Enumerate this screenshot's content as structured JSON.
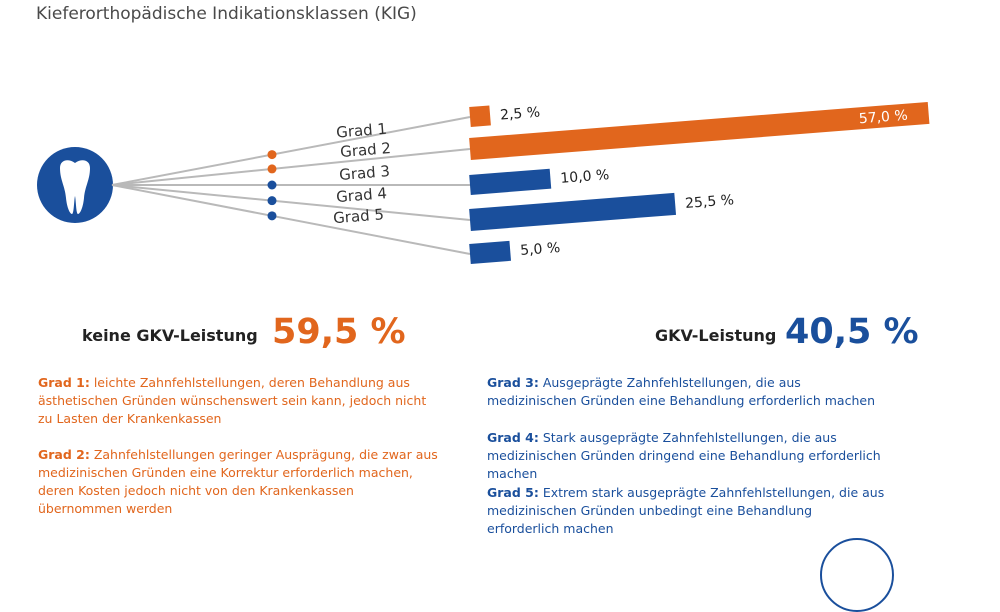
{
  "title": "Kieferorthopädische Indikationsklassen (KIG)",
  "colors": {
    "orange": "#e1661d",
    "blue": "#1a4f9c",
    "line": "#b9b9b9"
  },
  "icon": "tooth-icon",
  "chart_data": {
    "type": "bar",
    "categories": [
      "Grad 1",
      "Grad 2",
      "Grad 3",
      "Grad 4",
      "Grad 5"
    ],
    "values": [
      2.5,
      57.0,
      10.0,
      25.5,
      5.0
    ],
    "value_labels": [
      "2,5 %",
      "57,0 %",
      "10,0 %",
      "25,5 %",
      "5,0 %"
    ],
    "groups": [
      "keine GKV-Leistung",
      "keine GKV-Leistung",
      "GKV-Leistung",
      "GKV-Leistung",
      "GKV-Leistung"
    ],
    "xlim": [
      0,
      57.0
    ]
  },
  "left_header": {
    "label": "keine GKV-Leistung",
    "value": "59,5 %"
  },
  "right_header": {
    "label": "GKV-Leistung",
    "value": "40,5 %"
  },
  "descriptions": {
    "grad1": {
      "label": "Grad 1:",
      "text": " leichte Zahnfehlstellungen, deren Behandlung aus ästhetischen Gründen wünschenswert sein kann, jedoch nicht zu Lasten der Krankenkassen"
    },
    "grad2": {
      "label": "Grad 2:",
      "text": " Zahnfehlstellungen geringer Ausprägung, die zwar aus medizinischen Gründen eine Korrektur erforderlich machen, deren Kosten jedoch nicht von den Krankenkassen übernommen werden"
    },
    "grad3": {
      "label": "Grad 3:",
      "text": " Ausgeprägte Zahnfehlstellungen, die aus medizinischen Gründen eine Behandlung erforderlich machen"
    },
    "grad4": {
      "label": "Grad 4:",
      "text": " Stark ausgeprägte Zahnfehlstellungen, die aus medizinischen Gründen dringend eine Behandlung erforderlich machen"
    },
    "grad5": {
      "label": "Grad 5:",
      "text": " Extrem stark ausgeprägte Zahnfehlstellungen, die aus medizinischen  Gründen unbedingt eine Behandlung erforderlich machen"
    }
  }
}
